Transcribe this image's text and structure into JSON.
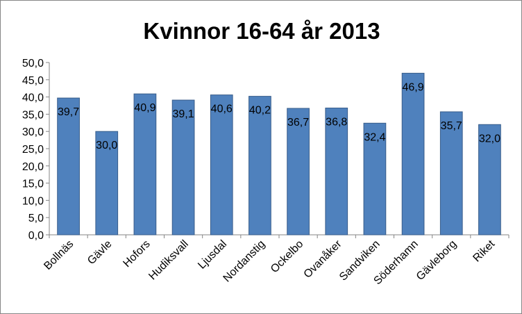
{
  "chart_data": {
    "type": "bar",
    "title": "Kvinnor 16-64 år 2013",
    "xlabel": "",
    "ylabel": "",
    "categories": [
      "Bollnäs",
      "Gävle",
      "Hofors",
      "Hudiksvall",
      "Ljusdal",
      "Nordanstig",
      "Ockelbo",
      "Ovanåker",
      "Sandviken",
      "Söderhamn",
      "Gävleborg",
      "Riket"
    ],
    "values": [
      39.7,
      30.0,
      40.9,
      39.1,
      40.6,
      40.2,
      36.7,
      36.8,
      32.4,
      46.9,
      35.7,
      32.0
    ],
    "data_labels": [
      "39,7",
      "30,0",
      "40,9",
      "39,1",
      "40,6",
      "40,2",
      "36,7",
      "36,8",
      "32,4",
      "46,9",
      "35,7",
      "32,0"
    ],
    "ylim": [
      0,
      50
    ],
    "yticks": [
      0,
      5,
      10,
      15,
      20,
      25,
      30,
      35,
      40,
      45,
      50
    ],
    "ytick_labels": [
      "0,0",
      "5,0",
      "10,0",
      "15,0",
      "20,0",
      "25,0",
      "30,0",
      "35,0",
      "40,0",
      "45,0",
      "50,0"
    ],
    "grid": false,
    "legend": "none",
    "bar_color": "#4F81BD",
    "bar_edge_color": "#385D8A"
  }
}
